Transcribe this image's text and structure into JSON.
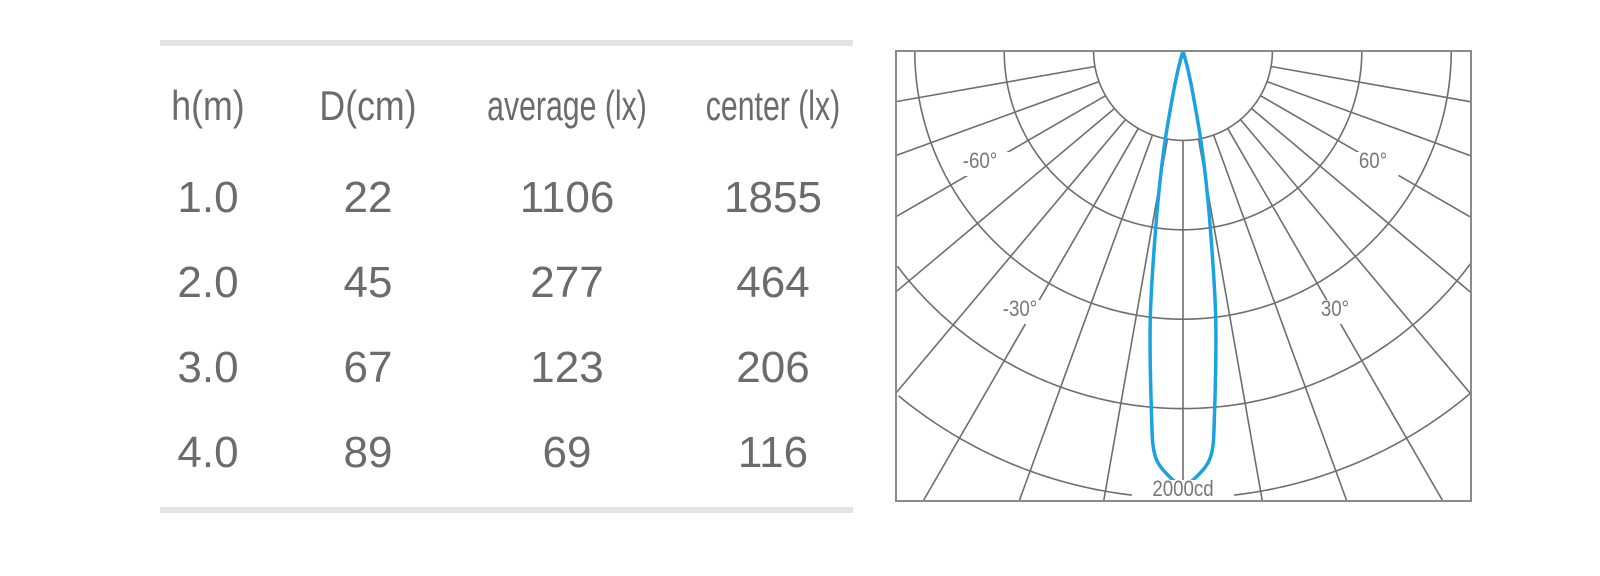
{
  "table": {
    "headers": [
      "h(m)",
      "D(cm)",
      "average (lx)",
      "center (lx)"
    ],
    "rows": [
      [
        "1.0",
        "22",
        "1106",
        "1855"
      ],
      [
        "2.0",
        "45",
        "277",
        "464"
      ],
      [
        "3.0",
        "67",
        "123",
        "206"
      ],
      [
        "4.0",
        "89",
        "69",
        "116"
      ]
    ]
  },
  "chart_data": [
    {
      "type": "table",
      "columns": [
        "h(m)",
        "D(cm)",
        "average (lx)",
        "center (lx)"
      ],
      "rows": [
        [
          1.0,
          22,
          1106,
          1855
        ],
        [
          2.0,
          45,
          277,
          464
        ],
        [
          3.0,
          67,
          123,
          206
        ],
        [
          4.0,
          89,
          69,
          116
        ]
      ]
    },
    {
      "type": "polar",
      "angle_labels": [
        "-60°",
        "60°",
        "-30°",
        "30°"
      ],
      "radial_label": "2000cd",
      "radial_range_cd": [
        0,
        2000
      ],
      "ring_values_cd": [
        400,
        800,
        1200,
        1600,
        2000
      ],
      "spoke_step_deg": 10,
      "grid": true,
      "series": [
        {
          "angles_deg": [
            0,
            2,
            4,
            5,
            7,
            9,
            11,
            13,
            15,
            20
          ],
          "intensity_cd": [
            1940,
            1900,
            1810,
            1620,
            1200,
            760,
            450,
            200,
            80,
            0
          ],
          "color": "#1aa3e0",
          "symmetric": true
        }
      ]
    }
  ]
}
